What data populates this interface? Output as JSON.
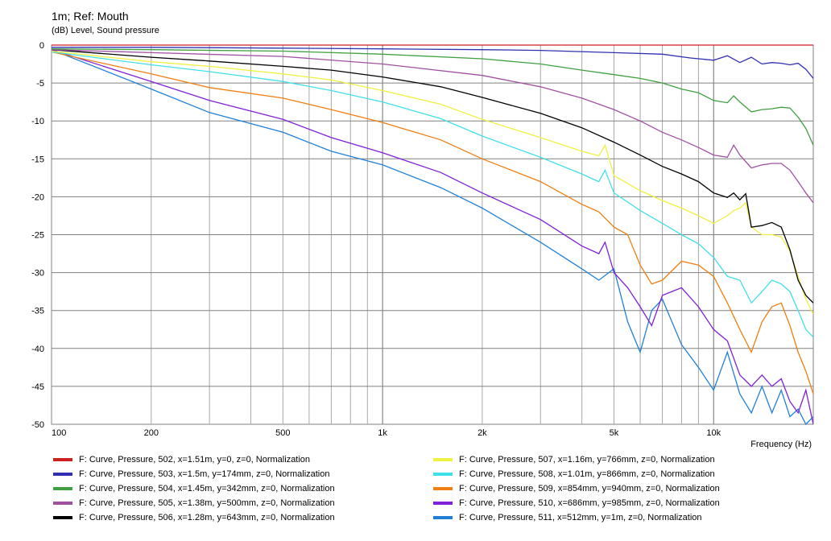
{
  "header": {
    "title": "1m; Ref: Mouth",
    "subtitle": "(dB)  Level, Sound pressure"
  },
  "chart_data": {
    "type": "line",
    "title": "1m; Ref: Mouth",
    "ylabel": "(dB)  Level, Sound pressure",
    "xlabel": "Frequency  (Hz)",
    "x_scale": "log",
    "xlim": [
      100,
      20000
    ],
    "ylim": [
      -50,
      0
    ],
    "grid": true,
    "legend_position": "bottom",
    "x_ticks": [
      {
        "value": 100,
        "label": "100"
      },
      {
        "value": 200,
        "label": "200"
      },
      {
        "value": 500,
        "label": "500"
      },
      {
        "value": 1000,
        "label": "1k"
      },
      {
        "value": 2000,
        "label": "2k"
      },
      {
        "value": 5000,
        "label": "5k"
      },
      {
        "value": 10000,
        "label": "10k"
      }
    ],
    "y_ticks": [
      {
        "value": 0,
        "label": "0"
      },
      {
        "value": -5,
        "label": "-5"
      },
      {
        "value": -10,
        "label": "-10"
      },
      {
        "value": -15,
        "label": "-15"
      },
      {
        "value": -20,
        "label": "-20"
      },
      {
        "value": -25,
        "label": "-25"
      },
      {
        "value": -30,
        "label": "-30"
      },
      {
        "value": -35,
        "label": "-35"
      },
      {
        "value": -40,
        "label": "-40"
      },
      {
        "value": -45,
        "label": "-45"
      },
      {
        "value": -50,
        "label": "-50"
      }
    ],
    "series": [
      {
        "name": "F: Curve, Pressure, 502, x=1.51m, y=0, z=0, Normalization",
        "color": "#cc2020",
        "points": [
          [
            100,
            0
          ],
          [
            20000,
            0
          ]
        ]
      },
      {
        "name": "F: Curve, Pressure, 503, x=1.5m, y=174mm, z=0, Normalization",
        "color": "#3030b0",
        "points": [
          [
            100,
            -0.3
          ],
          [
            200,
            -0.3
          ],
          [
            500,
            -0.4
          ],
          [
            1000,
            -0.5
          ],
          [
            2000,
            -0.6
          ],
          [
            3000,
            -0.7
          ],
          [
            5000,
            -1.0
          ],
          [
            7000,
            -1.2
          ],
          [
            8500,
            -1.7
          ],
          [
            10000,
            -2.0
          ],
          [
            11000,
            -1.4
          ],
          [
            12000,
            -2.3
          ],
          [
            13000,
            -1.6
          ],
          [
            14000,
            -2.5
          ],
          [
            15000,
            -2.3
          ],
          [
            16000,
            -2.4
          ],
          [
            17000,
            -2.6
          ],
          [
            18000,
            -2.4
          ],
          [
            19000,
            -3.2
          ],
          [
            20000,
            -4.4
          ]
        ]
      },
      {
        "name": "F: Curve, Pressure, 504, x=1.45m, y=342mm, z=0, Normalization",
        "color": "#40a040",
        "points": [
          [
            100,
            -0.5
          ],
          [
            200,
            -0.6
          ],
          [
            500,
            -0.8
          ],
          [
            1000,
            -1.2
          ],
          [
            2000,
            -1.8
          ],
          [
            3000,
            -2.5
          ],
          [
            4000,
            -3.3
          ],
          [
            5000,
            -3.9
          ],
          [
            6000,
            -4.4
          ],
          [
            7000,
            -5.0
          ],
          [
            8000,
            -5.8
          ],
          [
            9000,
            -6.3
          ],
          [
            10000,
            -7.3
          ],
          [
            11000,
            -7.6
          ],
          [
            11500,
            -6.7
          ],
          [
            12000,
            -7.5
          ],
          [
            13000,
            -8.8
          ],
          [
            14000,
            -8.5
          ],
          [
            15000,
            -8.4
          ],
          [
            16000,
            -8.2
          ],
          [
            17000,
            -8.3
          ],
          [
            18000,
            -9.5
          ],
          [
            19000,
            -11.0
          ],
          [
            20000,
            -13.2
          ]
        ]
      },
      {
        "name": "F: Curve, Pressure, 505, x=1.38m, y=500mm, z=0, Normalization",
        "color": "#a050a0",
        "points": [
          [
            100,
            -0.6
          ],
          [
            200,
            -1.0
          ],
          [
            500,
            -1.5
          ],
          [
            1000,
            -2.5
          ],
          [
            2000,
            -4.0
          ],
          [
            3000,
            -5.5
          ],
          [
            4000,
            -7.0
          ],
          [
            5000,
            -8.5
          ],
          [
            6000,
            -10.0
          ],
          [
            7000,
            -11.5
          ],
          [
            8000,
            -12.5
          ],
          [
            9000,
            -13.5
          ],
          [
            10000,
            -14.5
          ],
          [
            11000,
            -14.8
          ],
          [
            11500,
            -13.2
          ],
          [
            12000,
            -14.5
          ],
          [
            13000,
            -16.2
          ],
          [
            14000,
            -15.8
          ],
          [
            15000,
            -15.6
          ],
          [
            16000,
            -15.6
          ],
          [
            17000,
            -16.5
          ],
          [
            18000,
            -18.0
          ],
          [
            19000,
            -19.5
          ],
          [
            20000,
            -20.8
          ]
        ]
      },
      {
        "name": "F: Curve, Pressure, 506, x=1.28m, y=643mm, z=0, Normalization",
        "color": "#000000",
        "points": [
          [
            100,
            -0.6
          ],
          [
            200,
            -1.6
          ],
          [
            300,
            -2.1
          ],
          [
            500,
            -2.8
          ],
          [
            700,
            -3.3
          ],
          [
            1000,
            -4.2
          ],
          [
            1500,
            -5.5
          ],
          [
            2000,
            -6.9
          ],
          [
            3000,
            -9.0
          ],
          [
            4000,
            -10.9
          ],
          [
            5000,
            -12.8
          ],
          [
            6000,
            -14.5
          ],
          [
            7000,
            -16.0
          ],
          [
            8000,
            -17.0
          ],
          [
            9000,
            -18.0
          ],
          [
            10000,
            -19.5
          ],
          [
            11000,
            -20.1
          ],
          [
            11500,
            -19.5
          ],
          [
            12000,
            -20.4
          ],
          [
            12500,
            -19.6
          ],
          [
            13000,
            -24.0
          ],
          [
            14000,
            -23.8
          ],
          [
            15000,
            -23.4
          ],
          [
            16000,
            -24.0
          ],
          [
            17000,
            -27.0
          ],
          [
            18000,
            -31.0
          ],
          [
            19000,
            -33.0
          ],
          [
            20000,
            -34.0
          ]
        ]
      },
      {
        "name": "F: Curve, Pressure, 507, x=1.16m, y=766mm, z=0, Normalization",
        "color": "#f0f040",
        "points": [
          [
            100,
            -0.8
          ],
          [
            200,
            -2.2
          ],
          [
            300,
            -2.8
          ],
          [
            500,
            -3.8
          ],
          [
            700,
            -4.6
          ],
          [
            1000,
            -6.0
          ],
          [
            1500,
            -7.8
          ],
          [
            2000,
            -9.8
          ],
          [
            3000,
            -12.2
          ],
          [
            4000,
            -14.0
          ],
          [
            4500,
            -14.6
          ],
          [
            4700,
            -13.2
          ],
          [
            5000,
            -17.2
          ],
          [
            6000,
            -19.2
          ],
          [
            7000,
            -20.5
          ],
          [
            8000,
            -21.5
          ],
          [
            9000,
            -22.5
          ],
          [
            10000,
            -23.5
          ],
          [
            11000,
            -22.5
          ],
          [
            11500,
            -21.8
          ],
          [
            12000,
            -21.5
          ],
          [
            12500,
            -20.8
          ],
          [
            13000,
            -24.0
          ],
          [
            14000,
            -25.0
          ],
          [
            15000,
            -25.0
          ],
          [
            16000,
            -25.3
          ],
          [
            17000,
            -27.2
          ],
          [
            18000,
            -30.5
          ],
          [
            19000,
            -33.5
          ],
          [
            20000,
            -35.5
          ]
        ]
      },
      {
        "name": "F: Curve, Pressure, 508, x=1.01m, y=866mm, z=0, Normalization",
        "color": "#40e0e8",
        "points": [
          [
            100,
            -0.9
          ],
          [
            200,
            -2.6
          ],
          [
            300,
            -3.5
          ],
          [
            500,
            -4.8
          ],
          [
            700,
            -6.0
          ],
          [
            1000,
            -7.5
          ],
          [
            1500,
            -9.7
          ],
          [
            2000,
            -12.0
          ],
          [
            3000,
            -14.8
          ],
          [
            4000,
            -17.0
          ],
          [
            4500,
            -18.0
          ],
          [
            4700,
            -16.5
          ],
          [
            5000,
            -19.5
          ],
          [
            6000,
            -21.8
          ],
          [
            7000,
            -23.5
          ],
          [
            8000,
            -25.0
          ],
          [
            9000,
            -26.2
          ],
          [
            10000,
            -28.0
          ],
          [
            11000,
            -30.5
          ],
          [
            12000,
            -31.0
          ],
          [
            13000,
            -34.0
          ],
          [
            14000,
            -32.5
          ],
          [
            15000,
            -31.0
          ],
          [
            16000,
            -31.5
          ],
          [
            17000,
            -32.5
          ],
          [
            18000,
            -35.0
          ],
          [
            19000,
            -37.5
          ],
          [
            20000,
            -38.5
          ]
        ]
      },
      {
        "name": "F: Curve, Pressure, 509, x=854mm, y=940mm, z=0, Normalization",
        "color": "#f07e10",
        "points": [
          [
            100,
            -0.9
          ],
          [
            200,
            -3.8
          ],
          [
            300,
            -5.6
          ],
          [
            500,
            -7.0
          ],
          [
            700,
            -8.5
          ],
          [
            1000,
            -10.2
          ],
          [
            1500,
            -12.5
          ],
          [
            2000,
            -15.0
          ],
          [
            3000,
            -18.0
          ],
          [
            4000,
            -21.0
          ],
          [
            4500,
            -22.0
          ],
          [
            5000,
            -24.0
          ],
          [
            5500,
            -25.0
          ],
          [
            6000,
            -29.0
          ],
          [
            6500,
            -31.5
          ],
          [
            7000,
            -31.0
          ],
          [
            8000,
            -28.5
          ],
          [
            9000,
            -29.0
          ],
          [
            10000,
            -30.5
          ],
          [
            11000,
            -34.0
          ],
          [
            12000,
            -37.5
          ],
          [
            13000,
            -40.5
          ],
          [
            14000,
            -36.5
          ],
          [
            15000,
            -34.5
          ],
          [
            16000,
            -34.0
          ],
          [
            17000,
            -37.0
          ],
          [
            18000,
            -40.5
          ],
          [
            19000,
            -43.0
          ],
          [
            20000,
            -46.0
          ]
        ]
      },
      {
        "name": "F: Curve, Pressure, 510, x=686mm, y=985mm, z=0, Normalization",
        "color": "#8020d8",
        "points": [
          [
            100,
            -0.6
          ],
          [
            200,
            -4.8
          ],
          [
            300,
            -7.3
          ],
          [
            500,
            -9.8
          ],
          [
            700,
            -12.2
          ],
          [
            1000,
            -14.2
          ],
          [
            1500,
            -16.8
          ],
          [
            2000,
            -19.5
          ],
          [
            3000,
            -23.0
          ],
          [
            4000,
            -26.5
          ],
          [
            4500,
            -27.5
          ],
          [
            4700,
            -26.0
          ],
          [
            5000,
            -30.0
          ],
          [
            5500,
            -32.0
          ],
          [
            6000,
            -34.5
          ],
          [
            6500,
            -37.0
          ],
          [
            7000,
            -33.0
          ],
          [
            8000,
            -32.0
          ],
          [
            9000,
            -34.5
          ],
          [
            10000,
            -37.5
          ],
          [
            11000,
            -39.0
          ],
          [
            12000,
            -43.5
          ],
          [
            13000,
            -45.0
          ],
          [
            14000,
            -43.5
          ],
          [
            15000,
            -45.0
          ],
          [
            16000,
            -44.0
          ],
          [
            17000,
            -47.0
          ],
          [
            18000,
            -48.5
          ],
          [
            19000,
            -45.5
          ],
          [
            20000,
            -50.0
          ]
        ]
      },
      {
        "name": "F: Curve, Pressure, 511, x=512mm, y=1m, z=0, Normalization",
        "color": "#2080d8",
        "points": [
          [
            100,
            -0.6
          ],
          [
            200,
            -5.8
          ],
          [
            300,
            -8.9
          ],
          [
            500,
            -11.5
          ],
          [
            700,
            -14.0
          ],
          [
            1000,
            -15.8
          ],
          [
            1500,
            -18.8
          ],
          [
            2000,
            -21.5
          ],
          [
            3000,
            -26.0
          ],
          [
            4000,
            -29.5
          ],
          [
            4500,
            -31.0
          ],
          [
            5000,
            -29.5
          ],
          [
            5500,
            -36.5
          ],
          [
            6000,
            -40.5
          ],
          [
            6500,
            -35.0
          ],
          [
            7000,
            -33.5
          ],
          [
            8000,
            -39.5
          ],
          [
            9000,
            -42.5
          ],
          [
            10000,
            -45.5
          ],
          [
            11000,
            -40.5
          ],
          [
            12000,
            -46.0
          ],
          [
            13000,
            -48.5
          ],
          [
            14000,
            -45.0
          ],
          [
            15000,
            -48.5
          ],
          [
            16000,
            -45.5
          ],
          [
            17000,
            -49.0
          ],
          [
            18000,
            -48.0
          ],
          [
            19000,
            -50.0
          ],
          [
            20000,
            -49.0
          ]
        ]
      }
    ]
  }
}
